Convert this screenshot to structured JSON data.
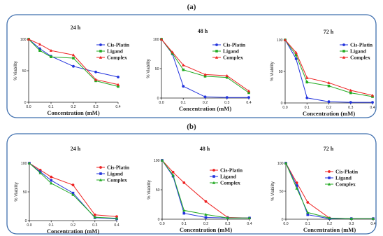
{
  "panels": [
    {
      "letter": "(a)"
    },
    {
      "letter": "(b)"
    }
  ],
  "chart_data": [
    {
      "panel": "(a)",
      "type": "line",
      "title": "24 h",
      "xlabel": "Concentration (mM)",
      "ylabel": "% Viability",
      "xlim": [
        0,
        0.4
      ],
      "ylim": [
        0,
        100
      ],
      "xticks": [
        "0.0",
        "0.1",
        "0.2",
        "0.3",
        "0.4"
      ],
      "yticks": [
        "0",
        "50",
        "100"
      ],
      "x": [
        0,
        0.05,
        0.1,
        0.2,
        0.3,
        0.4
      ],
      "series": [
        {
          "name": "Cis-Platin",
          "color": "#2233dd",
          "marker": "circle",
          "values": [
            100,
            85,
            73,
            57,
            48,
            40
          ]
        },
        {
          "name": "Ligand",
          "color": "#22aa22",
          "marker": "square",
          "values": [
            100,
            82,
            72,
            70,
            34,
            25
          ]
        },
        {
          "name": "Complex",
          "color": "#ee2222",
          "marker": "triangle",
          "values": [
            100,
            92,
            82,
            75,
            36,
            28
          ]
        }
      ]
    },
    {
      "panel": "(a)",
      "type": "line",
      "title": "48 h",
      "xlabel": "Concentration (mM)",
      "ylabel": "% Viability",
      "xlim": [
        0,
        0.4
      ],
      "ylim": [
        0,
        100
      ],
      "xticks": [
        "0.0",
        "0.1",
        "0.2",
        "0.3",
        "0.4"
      ],
      "yticks": [
        "0",
        "50",
        "100"
      ],
      "x": [
        0,
        0.05,
        0.1,
        0.2,
        0.3,
        0.4
      ],
      "series": [
        {
          "name": "Cis-Platin",
          "color": "#2233dd",
          "marker": "circle",
          "values": [
            100,
            75,
            20,
            2,
            1,
            1
          ]
        },
        {
          "name": "Ligand",
          "color": "#22aa22",
          "marker": "square",
          "values": [
            100,
            76,
            48,
            37,
            35,
            9
          ]
        },
        {
          "name": "Complex",
          "color": "#ee2222",
          "marker": "triangle",
          "values": [
            100,
            78,
            56,
            40,
            38,
            12
          ]
        }
      ]
    },
    {
      "panel": "(a)",
      "type": "line",
      "title": "72 h",
      "xlabel": "Concentration (mM)",
      "ylabel": "% Viability",
      "xlim": [
        0,
        0.4
      ],
      "ylim": [
        0,
        100
      ],
      "xticks": [
        "0.0",
        "0.1",
        "0.2",
        "0.3",
        "0.4"
      ],
      "yticks": [
        "0",
        "50",
        "100"
      ],
      "x": [
        0,
        0.05,
        0.1,
        0.2,
        0.3,
        0.4
      ],
      "series": [
        {
          "name": "Cis-Platin",
          "color": "#2233dd",
          "marker": "circle",
          "values": [
            100,
            70,
            8,
            2,
            1,
            1
          ]
        },
        {
          "name": "Ligand",
          "color": "#22aa22",
          "marker": "square",
          "values": [
            100,
            76,
            33,
            27,
            16,
            10
          ]
        },
        {
          "name": "Complex",
          "color": "#ee2222",
          "marker": "triangle",
          "values": [
            100,
            80,
            40,
            32,
            20,
            12
          ]
        }
      ]
    },
    {
      "panel": "(b)",
      "type": "line",
      "title": "24 h",
      "xlabel": "Concentration (mM)",
      "ylabel": "% Viability",
      "xlim": [
        0,
        0.4
      ],
      "ylim": [
        0,
        100
      ],
      "xticks": [
        "0.0",
        "0.1",
        "0.2",
        "0.3",
        "0.4"
      ],
      "yticks": [
        "0",
        "50",
        "100"
      ],
      "x": [
        0,
        0.05,
        0.1,
        0.2,
        0.3,
        0.4
      ],
      "series": [
        {
          "name": "Cis-Platin",
          "color": "#ee2222",
          "marker": "circle",
          "values": [
            100,
            88,
            76,
            62,
            10,
            7
          ]
        },
        {
          "name": "Ligand",
          "color": "#2233dd",
          "marker": "square",
          "values": [
            100,
            85,
            70,
            48,
            5,
            3
          ]
        },
        {
          "name": "Complex",
          "color": "#22aa22",
          "marker": "triangle",
          "values": [
            100,
            83,
            65,
            45,
            6,
            4
          ]
        }
      ]
    },
    {
      "panel": "(b)",
      "type": "line",
      "title": "48 h",
      "xlabel": "Concentration (mM)",
      "ylabel": "% Viability",
      "xlim": [
        0,
        0.4
      ],
      "ylim": [
        0,
        100
      ],
      "xticks": [
        "0.0",
        "0.1",
        "0.2",
        "0.3",
        "0.4"
      ],
      "yticks": [
        "0",
        "50",
        "100"
      ],
      "x": [
        0,
        0.05,
        0.1,
        0.2,
        0.3,
        0.4
      ],
      "series": [
        {
          "name": "Cis-Platin",
          "color": "#ee2222",
          "marker": "circle",
          "values": [
            100,
            80,
            62,
            30,
            3,
            2
          ]
        },
        {
          "name": "Ligand",
          "color": "#2233dd",
          "marker": "square",
          "values": [
            100,
            73,
            10,
            3,
            2,
            2
          ]
        },
        {
          "name": "Complex",
          "color": "#22aa22",
          "marker": "triangle",
          "values": [
            100,
            75,
            15,
            8,
            2,
            2
          ]
        }
      ]
    },
    {
      "panel": "(b)",
      "type": "line",
      "title": "72 h",
      "xlabel": "Concentration (mM)",
      "ylabel": "% Viability",
      "xlim": [
        0,
        0.4
      ],
      "ylim": [
        0,
        100
      ],
      "xticks": [
        "0.0",
        "0.1",
        "0.2",
        "0.3",
        "0.4"
      ],
      "yticks": [
        "0",
        "50",
        "100"
      ],
      "x": [
        0,
        0.05,
        0.1,
        0.2,
        0.3,
        0.4
      ],
      "series": [
        {
          "name": "Cis-Platin",
          "color": "#ee2222",
          "marker": "circle",
          "values": [
            100,
            65,
            30,
            2,
            1,
            1
          ]
        },
        {
          "name": "Ligand",
          "color": "#2233dd",
          "marker": "square",
          "values": [
            100,
            60,
            8,
            1,
            1,
            1
          ]
        },
        {
          "name": "Complex",
          "color": "#22aa22",
          "marker": "triangle",
          "values": [
            100,
            55,
            12,
            2,
            1,
            1
          ]
        }
      ]
    }
  ]
}
